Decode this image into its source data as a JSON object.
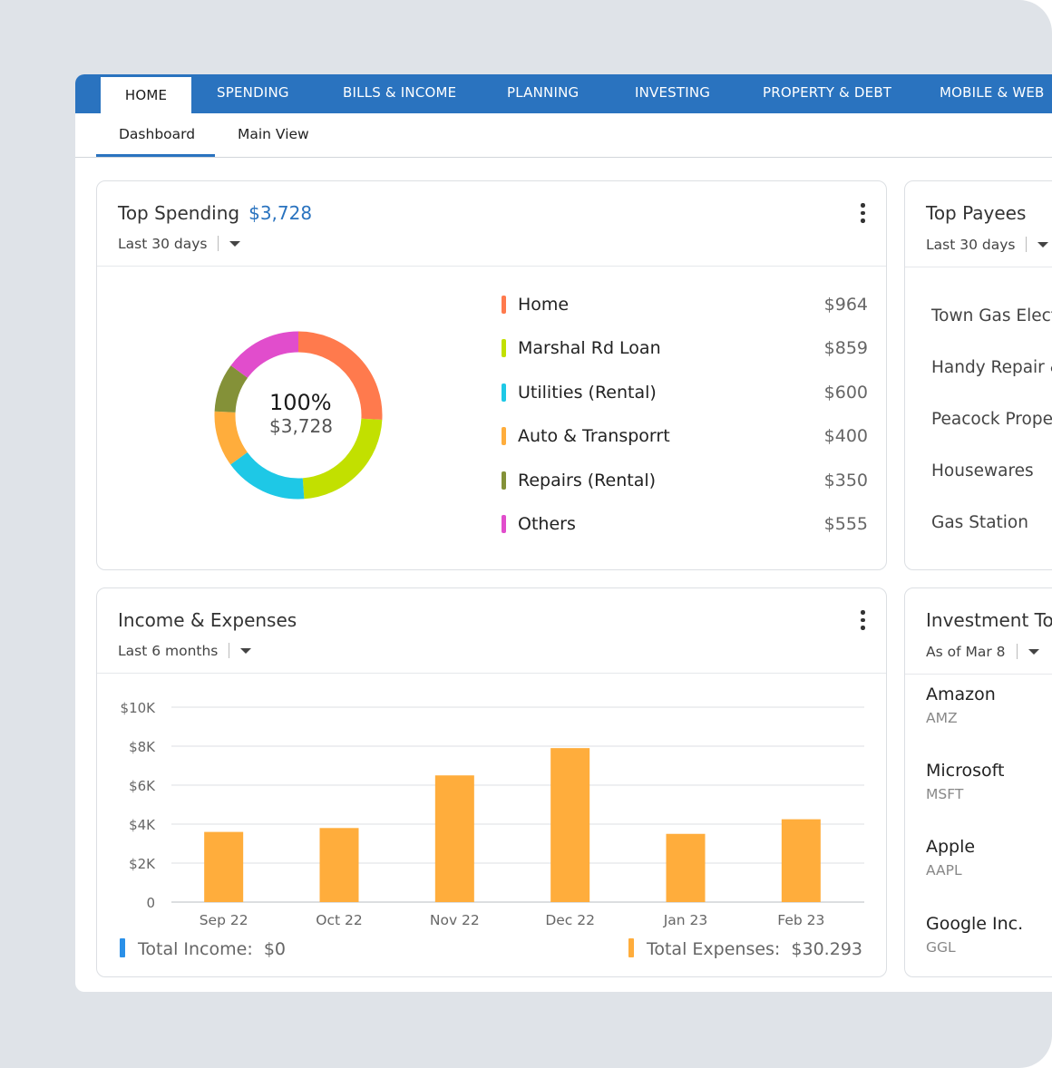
{
  "colors": {
    "brand": "#2a73bf",
    "home": "#ff7a4d",
    "marshal": "#c2e000",
    "utilities": "#1ec8e6",
    "auto": "#ffad3c",
    "repairs": "#849138",
    "others": "#e14dcc",
    "income": "#2a90e8",
    "expenses": "#ffad3c"
  },
  "nav": {
    "tabs": [
      "HOME",
      "SPENDING",
      "BILLS & INCOME",
      "PLANNING",
      "INVESTING",
      "PROPERTY & DEBT",
      "MOBILE & WEB"
    ],
    "active": "HOME"
  },
  "subnav": {
    "items": [
      "Dashboard",
      "Main View"
    ],
    "active": "Dashboard"
  },
  "top_spending": {
    "title": "Top Spending",
    "amount": "$3,728",
    "range": "Last 30 days",
    "center_percent": "100%",
    "center_amount": "$3,728",
    "items": [
      {
        "label": "Home",
        "value": "$964",
        "amount": 964,
        "color": "#ff7a4d"
      },
      {
        "label": "Marshal Rd Loan",
        "value": "$859",
        "amount": 859,
        "color": "#c2e000"
      },
      {
        "label": "Utilities (Rental)",
        "value": "$600",
        "amount": 600,
        "color": "#1ec8e6"
      },
      {
        "label": "Auto & Transporrt",
        "value": "$400",
        "amount": 400,
        "color": "#ffad3c"
      },
      {
        "label": "Repairs (Rental)",
        "value": "$350",
        "amount": 350,
        "color": "#849138"
      },
      {
        "label": "Others",
        "value": "$555",
        "amount": 555,
        "color": "#e14dcc"
      }
    ]
  },
  "top_payees": {
    "title": "Top Payees",
    "range": "Last 30 days",
    "items": [
      "Town Gas Electr",
      "Handy Repair &",
      "Peacock Proper",
      "Housewares",
      "Gas Station"
    ]
  },
  "income_expenses": {
    "title": "Income & Expenses",
    "range": "Last 6 months",
    "total_income_label": "Total Income:",
    "total_income_value": "$0",
    "total_expenses_label": "Total Expenses:",
    "total_expenses_value": "$30.293"
  },
  "chart_data": {
    "type": "bar",
    "categories": [
      "Sep 22",
      "Oct 22",
      "Nov 22",
      "Dec 22",
      "Jan 23",
      "Feb 23"
    ],
    "series": [
      {
        "name": "Total Expenses",
        "values": [
          3600,
          3800,
          6500,
          7900,
          3500,
          4250
        ]
      }
    ],
    "ylim": [
      0,
      10000
    ],
    "yticks": [
      0,
      2000,
      4000,
      6000,
      8000,
      10000
    ],
    "ytick_labels": [
      "0",
      "$2K",
      "$4K",
      "$6K",
      "$8K",
      "$10K"
    ],
    "grid": true
  },
  "investments": {
    "title": "Investment Top",
    "range": "As of Mar 8",
    "items": [
      {
        "name": "Amazon",
        "symbol": "AMZ"
      },
      {
        "name": "Microsoft",
        "symbol": "MSFT"
      },
      {
        "name": "Apple",
        "symbol": "AAPL"
      },
      {
        "name": "Google Inc.",
        "symbol": "GGL"
      }
    ]
  }
}
